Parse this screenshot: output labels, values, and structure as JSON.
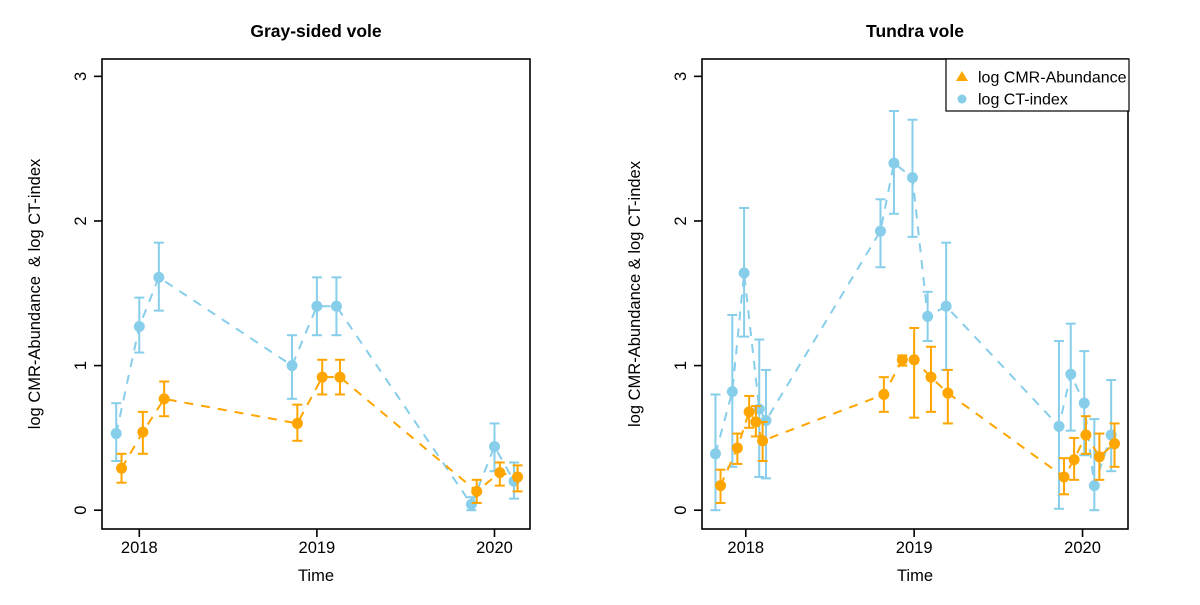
{
  "style": {
    "cmr_color": "#FFA500",
    "ct_color": "#87CEEB",
    "frame_color": "#000000",
    "background": "#FFFFFF"
  },
  "chart_data": [
    {
      "type": "line",
      "title": "Gray-sided vole",
      "xlabel": "Time",
      "ylabel": "log CMR-Abundance  & log CT-index",
      "xlim": [
        2017.79,
        2020.2
      ],
      "ylim": [
        -0.13,
        3.12
      ],
      "xticks": [
        2018,
        2019,
        2020
      ],
      "yticks": [
        0,
        1,
        2,
        3
      ],
      "grid": false,
      "legend": null,
      "series": [
        {
          "name": "log CT-index",
          "color_key": "ct_color",
          "marker": "circle",
          "points": [
            {
              "x": 2017.87,
              "y": 0.53,
              "lo": 0.34,
              "hi": 0.74
            },
            {
              "x": 2018.0,
              "y": 1.27,
              "lo": 1.09,
              "hi": 1.47
            },
            {
              "x": 2018.11,
              "y": 1.61,
              "lo": 1.38,
              "hi": 1.85
            },
            {
              "x": 2018.86,
              "y": 1.0,
              "lo": 0.77,
              "hi": 1.21
            },
            {
              "x": 2019.0,
              "y": 1.41,
              "lo": 1.21,
              "hi": 1.61
            },
            {
              "x": 2019.11,
              "y": 1.41,
              "lo": 1.21,
              "hi": 1.61
            },
            {
              "x": 2019.87,
              "y": 0.04,
              "lo": 0.0,
              "hi": 0.09
            },
            {
              "x": 2020.0,
              "y": 0.44,
              "lo": 0.27,
              "hi": 0.6
            },
            {
              "x": 2020.11,
              "y": 0.2,
              "lo": 0.08,
              "hi": 0.33
            }
          ]
        },
        {
          "name": "log CMR-Abundance",
          "color_key": "cmr_color",
          "marker": "circle",
          "points": [
            {
              "x": 2017.9,
              "y": 0.29,
              "lo": 0.19,
              "hi": 0.39
            },
            {
              "x": 2018.02,
              "y": 0.54,
              "lo": 0.39,
              "hi": 0.68
            },
            {
              "x": 2018.14,
              "y": 0.77,
              "lo": 0.65,
              "hi": 0.89
            },
            {
              "x": 2018.89,
              "y": 0.6,
              "lo": 0.48,
              "hi": 0.73
            },
            {
              "x": 2019.03,
              "y": 0.92,
              "lo": 0.8,
              "hi": 1.04
            },
            {
              "x": 2019.13,
              "y": 0.92,
              "lo": 0.8,
              "hi": 1.04
            },
            {
              "x": 2019.9,
              "y": 0.13,
              "lo": 0.05,
              "hi": 0.21
            },
            {
              "x": 2020.03,
              "y": 0.26,
              "lo": 0.17,
              "hi": 0.33
            },
            {
              "x": 2020.13,
              "y": 0.23,
              "lo": 0.13,
              "hi": 0.31
            }
          ]
        }
      ]
    },
    {
      "type": "line",
      "title": "Tundra vole",
      "xlabel": "Time",
      "ylabel": "log CMR-Abundance & log CT-index",
      "xlim": [
        2017.74,
        2020.27
      ],
      "ylim": [
        -0.13,
        3.12
      ],
      "xticks": [
        2018,
        2019,
        2020
      ],
      "yticks": [
        0,
        1,
        2,
        3
      ],
      "grid": false,
      "legend": {
        "position": "topright",
        "entries": [
          {
            "label": "log CMR-Abundance",
            "symbol": "triangle",
            "color_key": "cmr_color"
          },
          {
            "label": "log CT-index",
            "symbol": "circle",
            "color_key": "ct_color"
          }
        ]
      },
      "series": [
        {
          "name": "log CT-index",
          "color_key": "ct_color",
          "marker": "circle",
          "points": [
            {
              "x": 2017.82,
              "y": 0.39,
              "lo": 0.0,
              "hi": 0.8
            },
            {
              "x": 2017.92,
              "y": 0.82,
              "lo": 0.3,
              "hi": 1.35
            },
            {
              "x": 2017.99,
              "y": 1.64,
              "lo": 1.2,
              "hi": 2.09
            },
            {
              "x": 2018.08,
              "y": 0.7,
              "lo": 0.23,
              "hi": 1.18
            },
            {
              "x": 2018.12,
              "y": 0.62,
              "lo": 0.22,
              "hi": 0.97
            },
            {
              "x": 2018.8,
              "y": 1.93,
              "lo": 1.68,
              "hi": 2.15
            },
            {
              "x": 2018.88,
              "y": 2.4,
              "lo": 2.05,
              "hi": 2.76
            },
            {
              "x": 2018.99,
              "y": 2.3,
              "lo": 1.89,
              "hi": 2.7
            },
            {
              "x": 2019.08,
              "y": 1.34,
              "lo": 1.17,
              "hi": 1.51
            },
            {
              "x": 2019.19,
              "y": 1.41,
              "lo": 0.97,
              "hi": 1.85
            },
            {
              "x": 2019.86,
              "y": 0.58,
              "lo": 0.01,
              "hi": 1.17
            },
            {
              "x": 2019.93,
              "y": 0.94,
              "lo": 0.55,
              "hi": 1.29
            },
            {
              "x": 2020.01,
              "y": 0.74,
              "lo": 0.38,
              "hi": 1.1
            },
            {
              "x": 2020.07,
              "y": 0.17,
              "lo": 0.0,
              "hi": 0.63
            },
            {
              "x": 2020.17,
              "y": 0.52,
              "lo": 0.27,
              "hi": 0.9
            }
          ]
        },
        {
          "name": "log CMR-Abundance",
          "color_key": "cmr_color",
          "marker": "circle",
          "points": [
            {
              "x": 2017.85,
              "y": 0.17,
              "lo": 0.05,
              "hi": 0.28
            },
            {
              "x": 2017.95,
              "y": 0.43,
              "lo": 0.32,
              "hi": 0.53
            },
            {
              "x": 2018.02,
              "y": 0.68,
              "lo": 0.57,
              "hi": 0.79
            },
            {
              "x": 2018.06,
              "y": 0.61,
              "lo": 0.51,
              "hi": 0.72
            },
            {
              "x": 2018.1,
              "y": 0.48,
              "lo": 0.34,
              "hi": 0.61
            },
            {
              "x": 2018.82,
              "y": 0.8,
              "lo": 0.68,
              "hi": 0.92
            },
            {
              "x": 2018.93,
              "y": 1.04,
              "lo": 1.0,
              "hi": 1.07
            },
            {
              "x": 2019.0,
              "y": 1.04,
              "lo": 0.64,
              "hi": 1.26
            },
            {
              "x": 2019.1,
              "y": 0.92,
              "lo": 0.68,
              "hi": 1.13
            },
            {
              "x": 2019.2,
              "y": 0.81,
              "lo": 0.6,
              "hi": 0.97
            },
            {
              "x": 2019.89,
              "y": 0.23,
              "lo": 0.11,
              "hi": 0.36
            },
            {
              "x": 2019.95,
              "y": 0.35,
              "lo": 0.21,
              "hi": 0.5
            },
            {
              "x": 2020.02,
              "y": 0.52,
              "lo": 0.39,
              "hi": 0.65
            },
            {
              "x": 2020.1,
              "y": 0.37,
              "lo": 0.21,
              "hi": 0.53
            },
            {
              "x": 2020.19,
              "y": 0.46,
              "lo": 0.3,
              "hi": 0.6
            }
          ]
        }
      ]
    }
  ]
}
